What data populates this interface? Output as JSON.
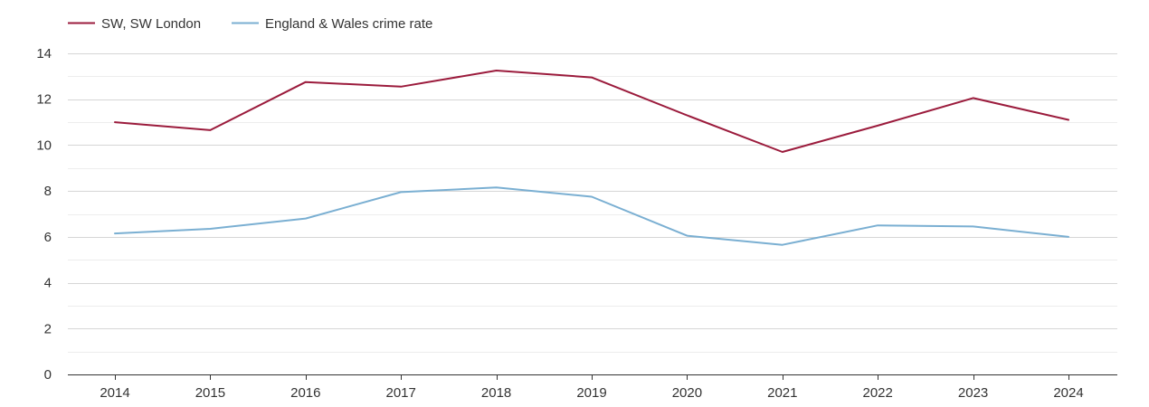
{
  "chart_data": {
    "type": "line",
    "title": "",
    "xlabel": "",
    "ylabel": "",
    "x": [
      "2014",
      "2015",
      "2016",
      "2017",
      "2018",
      "2019",
      "2020",
      "2021",
      "2022",
      "2023",
      "2024"
    ],
    "ylim": [
      0,
      14
    ],
    "y_ticks": [
      "0",
      "2",
      "4",
      "6",
      "8",
      "10",
      "12",
      "14"
    ],
    "grid": true,
    "legend_position": "top-left",
    "series": [
      {
        "name": "SW, SW London",
        "color": "#9b1b3c",
        "values": [
          11.0,
          10.65,
          12.75,
          12.55,
          13.25,
          12.95,
          11.3,
          9.7,
          10.85,
          12.05,
          11.1
        ]
      },
      {
        "name": "England & Wales crime rate",
        "color": "#7aafd2",
        "values": [
          6.15,
          6.35,
          6.8,
          7.95,
          8.15,
          7.75,
          6.05,
          5.65,
          6.5,
          6.45,
          6.0
        ]
      }
    ]
  }
}
